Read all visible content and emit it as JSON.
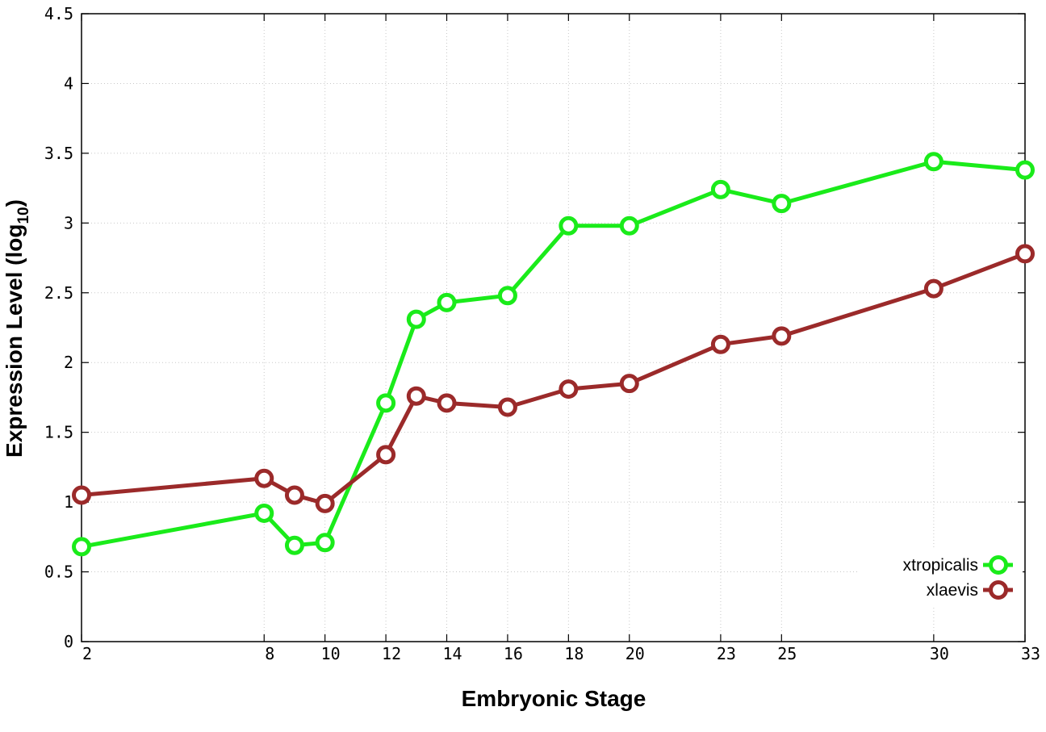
{
  "chart_data": {
    "type": "line",
    "title": "",
    "xlabel": "Embryonic Stage",
    "ylabel_main": "Expression Level (log",
    "ylabel_sub": "10",
    "ylabel_close": ")",
    "x": [
      2,
      8,
      9,
      10,
      12,
      13,
      14,
      16,
      18,
      20,
      23,
      25,
      30,
      33
    ],
    "xlim": [
      2,
      33
    ],
    "xticks": [
      2,
      8,
      10,
      12,
      14,
      16,
      18,
      20,
      23,
      25,
      30,
      33
    ],
    "ylim": [
      0,
      4.5
    ],
    "yticks": [
      "0",
      "0.5",
      "1",
      "1.5",
      "2",
      "2.5",
      "3",
      "3.5",
      "4",
      "4.5"
    ],
    "grid": true,
    "legend_position": "bottom-right",
    "series": [
      {
        "name": "xtropicalis",
        "color": "#1aeb1a",
        "values": [
          0.68,
          0.92,
          0.69,
          0.71,
          1.71,
          2.31,
          2.43,
          2.48,
          2.98,
          2.98,
          3.24,
          3.14,
          3.44,
          3.38
        ]
      },
      {
        "name": "xlaevis",
        "color": "#9b2a2a",
        "values": [
          1.05,
          1.17,
          1.05,
          0.99,
          1.34,
          1.76,
          1.71,
          1.68,
          1.81,
          1.85,
          2.13,
          2.19,
          2.53,
          2.78
        ]
      }
    ]
  }
}
